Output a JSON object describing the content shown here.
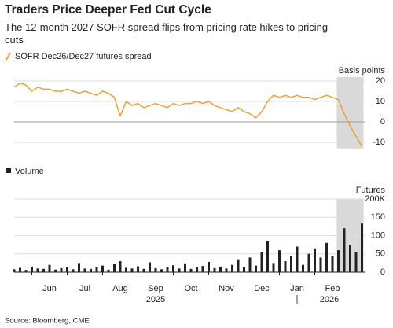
{
  "chart_data": [
    {
      "type": "line",
      "title": "Traders Price Deeper Fed Cut Cycle",
      "subtitle": "The 12-month 2027 SOFR spread flips from pricing rate hikes to pricing cuts",
      "series": [
        {
          "name": "SOFR Dec26/Dec27 futures spread",
          "color": "#f0a030",
          "values": [
            17,
            19,
            18,
            15,
            17,
            16,
            16,
            15,
            15,
            16,
            15,
            14,
            15,
            14,
            13,
            15,
            14,
            12,
            3,
            10,
            8,
            9,
            7,
            8,
            9,
            8,
            7,
            9,
            8,
            9,
            9,
            10,
            9,
            10,
            8,
            7,
            6,
            5,
            7,
            5,
            4,
            2,
            5,
            10,
            13,
            12,
            13,
            12,
            13,
            12,
            12,
            11,
            12,
            13,
            12,
            11,
            4,
            -2,
            -7,
            -12
          ]
        }
      ],
      "y_label": "Basis points",
      "ylim": [
        -13,
        22
      ],
      "yticks": [
        -10,
        0,
        10,
        20
      ],
      "grid": true
    },
    {
      "type": "bar",
      "series": [
        {
          "name": "Volume",
          "color": "#222222",
          "values": [
            8,
            12,
            6,
            15,
            10,
            9,
            20,
            7,
            11,
            14,
            8,
            25,
            10,
            9,
            13,
            18,
            7,
            22,
            30,
            12,
            10,
            16,
            9,
            27,
            11,
            8,
            14,
            19,
            10,
            24,
            9,
            13,
            17,
            28,
            11,
            15,
            10,
            20,
            35,
            14,
            40,
            18,
            55,
            85,
            25,
            60,
            30,
            45,
            70,
            20,
            50,
            65,
            40,
            80,
            45,
            60,
            120,
            75,
            55,
            133
          ]
        }
      ],
      "categories": [
        null,
        null,
        null,
        null,
        null,
        null,
        "Jun",
        null,
        null,
        null,
        null,
        null,
        "Jul",
        null,
        null,
        null,
        null,
        null,
        "Aug",
        null,
        null,
        null,
        null,
        null,
        "Sep",
        null,
        null,
        null,
        null,
        null,
        "Oct",
        null,
        null,
        null,
        null,
        null,
        "Nov",
        null,
        null,
        null,
        null,
        null,
        "Dec",
        null,
        null,
        null,
        null,
        null,
        "Jan",
        null,
        null,
        null,
        null,
        null,
        "Feb",
        null,
        null,
        null,
        null,
        null
      ],
      "years": [
        "2025",
        "2026"
      ],
      "y_label": "Futures",
      "ylim": [
        0,
        200
      ],
      "yticks": [
        0,
        50,
        100,
        150,
        {
          "value": 200,
          "label": "200K"
        }
      ],
      "grid": true
    }
  ],
  "source": "Source: Bloomberg, CME"
}
